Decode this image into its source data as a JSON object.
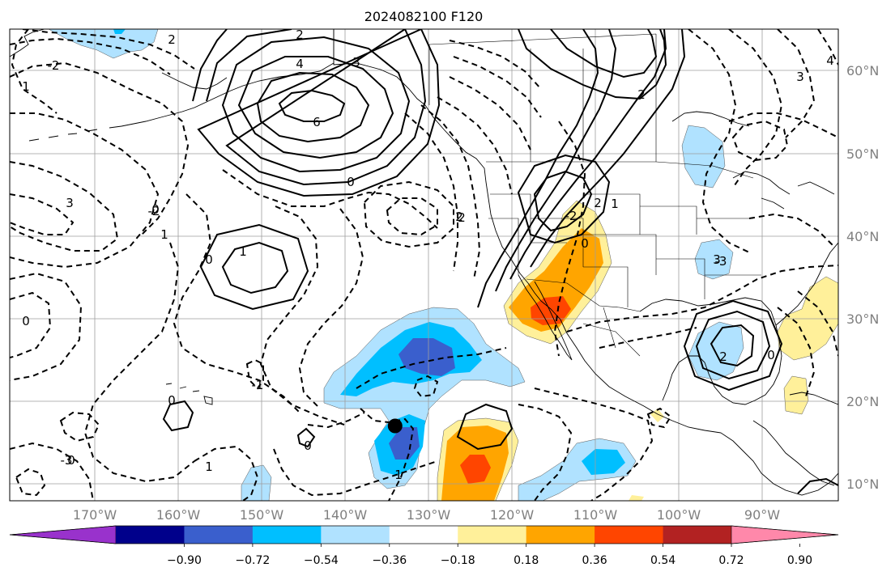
{
  "title": "2024082100 F120",
  "lat_labels": [
    "60°N",
    "50°N",
    "40°N",
    "30°N",
    "20°N",
    "10°N"
  ],
  "lon_labels": [
    "170°W",
    "160°W",
    "150°W",
    "140°W",
    "130°W",
    "120°W",
    "110°W",
    "100°W",
    "90°W"
  ],
  "colorbar": {
    "tick_labels": [
      "−0.90",
      "−0.72",
      "−0.54",
      "−0.36",
      "−0.18",
      "0.18",
      "0.36",
      "0.54",
      "0.72",
      "0.90"
    ],
    "colors": [
      "#9932cc",
      "#00008b",
      "#3a5fcd",
      "#00bfff",
      "#b0e2ff",
      "#ffffff",
      "#fff09a",
      "#ffa500",
      "#ff4500",
      "#b22222",
      "#ff88aa"
    ]
  },
  "contour_labels": [
    "2",
    "2",
    "3",
    "4",
    "6",
    "0",
    "3",
    "2",
    "2",
    "-2",
    "2",
    "0",
    "1",
    "0",
    "1",
    "1",
    "0",
    "-1",
    "0",
    "-3",
    "-2",
    "2",
    "3",
    "4",
    "0",
    "-3",
    "-2",
    "3",
    "0",
    "1",
    "0",
    "1",
    "0",
    "2",
    "1"
  ],
  "marker": {
    "name": "storm-position",
    "lat": 17,
    "lon": -134
  },
  "fill_colors": {
    "light_blue": "#b0e2ff",
    "blue": "#00bfff",
    "dark_blue": "#3a5fcd",
    "yellow": "#fff09a",
    "orange": "#ffa500",
    "red": "#ff4500"
  }
}
